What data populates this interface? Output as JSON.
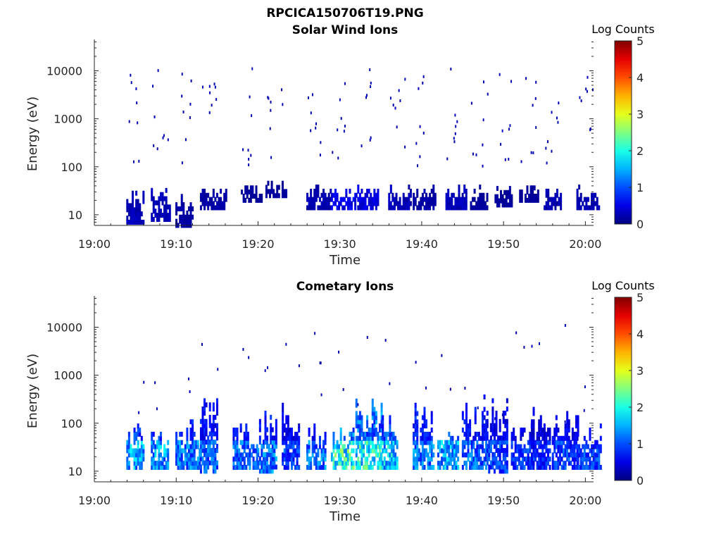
{
  "figure_title": "RPCICA150706T19.PNG",
  "chart_data": [
    {
      "type": "heatmap",
      "title": "Solar Wind Ions",
      "xlabel": "Time",
      "ylabel": "Energy (eV)",
      "xlim": [
        "19:00",
        "20:01"
      ],
      "xticks": [
        "19:00",
        "19:10",
        "19:20",
        "19:30",
        "19:40",
        "19:50",
        "20:00"
      ],
      "yscale": "log",
      "ylim": [
        6,
        45000
      ],
      "yticks": [
        "10",
        "100",
        "1000",
        "10000"
      ],
      "colorbar": {
        "label": "Log Counts",
        "range": [
          0,
          5
        ],
        "ticks": [
          "0",
          "1",
          "2",
          "3",
          "4",
          "5"
        ],
        "colormap": "jet"
      },
      "bursts": [
        {
          "t": "19:05",
          "emin": 7,
          "emax": 40,
          "log_counts": 0.3
        },
        {
          "t": "19:08",
          "emin": 8,
          "emax": 40,
          "log_counts": 0.3
        },
        {
          "t": "19:11",
          "emin": 6,
          "emax": 30,
          "log_counts": 0.2
        },
        {
          "t": "19:14",
          "emin": 14,
          "emax": 40,
          "log_counts": 0.2
        },
        {
          "t": "19:19",
          "emin": 20,
          "emax": 40,
          "log_counts": 0.15
        },
        {
          "t": "19:22",
          "emin": 25,
          "emax": 55,
          "log_counts": 0.15
        },
        {
          "t": "19:27",
          "emin": 14,
          "emax": 40,
          "log_counts": 0.25
        },
        {
          "t": "19:30",
          "emin": 14,
          "emax": 40,
          "log_counts": 0.6
        },
        {
          "t": "19:33",
          "emin": 14,
          "emax": 40,
          "log_counts": 0.5
        },
        {
          "t": "19:37",
          "emin": 14,
          "emax": 40,
          "log_counts": 0.3
        },
        {
          "t": "19:40",
          "emin": 14,
          "emax": 40,
          "log_counts": 0.2
        },
        {
          "t": "19:44",
          "emin": 14,
          "emax": 40,
          "log_counts": 0.3
        },
        {
          "t": "19:47",
          "emin": 14,
          "emax": 40,
          "log_counts": 0.15
        },
        {
          "t": "19:50",
          "emin": 16,
          "emax": 40,
          "log_counts": 0.15
        },
        {
          "t": "19:53",
          "emin": 20,
          "emax": 40,
          "log_counts": 0.15
        },
        {
          "t": "19:56",
          "emin": 14,
          "emax": 40,
          "log_counts": 0.25
        },
        {
          "t": "20:00",
          "emin": 14,
          "emax": 40,
          "log_counts": 0.25
        }
      ]
    },
    {
      "type": "heatmap",
      "title": "Cometary Ions",
      "xlabel": "Time",
      "ylabel": "Energy (eV)",
      "xlim": [
        "19:00",
        "20:01"
      ],
      "xticks": [
        "19:00",
        "19:10",
        "19:20",
        "19:30",
        "19:40",
        "19:50",
        "20:00"
      ],
      "yscale": "log",
      "ylim": [
        6,
        45000
      ],
      "yticks": [
        "10",
        "100",
        "1000",
        "10000"
      ],
      "colorbar": {
        "label": "Log Counts",
        "range": [
          0,
          5
        ],
        "ticks": [
          "0",
          "1",
          "2",
          "3",
          "4",
          "5"
        ],
        "colormap": "jet"
      },
      "bursts": [
        {
          "t": "19:05",
          "emin": 12,
          "emax": 100,
          "log_counts": 1.6
        },
        {
          "t": "19:08",
          "emin": 12,
          "emax": 70,
          "log_counts": 1.5
        },
        {
          "t": "19:11",
          "emin": 12,
          "emax": 150,
          "log_counts": 1.3
        },
        {
          "t": "19:14",
          "emin": 10,
          "emax": 380,
          "log_counts": 1.2
        },
        {
          "t": "19:18",
          "emin": 12,
          "emax": 150,
          "log_counts": 1.2
        },
        {
          "t": "19:21",
          "emin": 10,
          "emax": 220,
          "log_counts": 1.3
        },
        {
          "t": "19:24",
          "emin": 12,
          "emax": 300,
          "log_counts": 1.0
        },
        {
          "t": "19:27",
          "emin": 12,
          "emax": 100,
          "log_counts": 1.3
        },
        {
          "t": "19:30",
          "emin": 12,
          "emax": 80,
          "log_counts": 2.2
        },
        {
          "t": "19:33",
          "emin": 12,
          "emax": 350,
          "log_counts": 2.1
        },
        {
          "t": "19:36",
          "emin": 12,
          "emax": 150,
          "log_counts": 1.8
        },
        {
          "t": "19:40",
          "emin": 12,
          "emax": 300,
          "log_counts": 1.3
        },
        {
          "t": "19:43",
          "emin": 12,
          "emax": 100,
          "log_counts": 1.6
        },
        {
          "t": "19:46",
          "emin": 12,
          "emax": 420,
          "log_counts": 1.2
        },
        {
          "t": "19:49",
          "emin": 10,
          "emax": 400,
          "log_counts": 1.0
        },
        {
          "t": "19:52",
          "emin": 12,
          "emax": 100,
          "log_counts": 1.0
        },
        {
          "t": "19:54",
          "emin": 12,
          "emax": 200,
          "log_counts": 0.8
        },
        {
          "t": "19:57",
          "emin": 12,
          "emax": 180,
          "log_counts": 1.0
        },
        {
          "t": "20:00",
          "emin": 12,
          "emax": 100,
          "log_counts": 1.0
        }
      ],
      "points": [
        {
          "t": "19:27.5",
          "e": 1800,
          "log_counts": 0.2
        }
      ]
    }
  ]
}
